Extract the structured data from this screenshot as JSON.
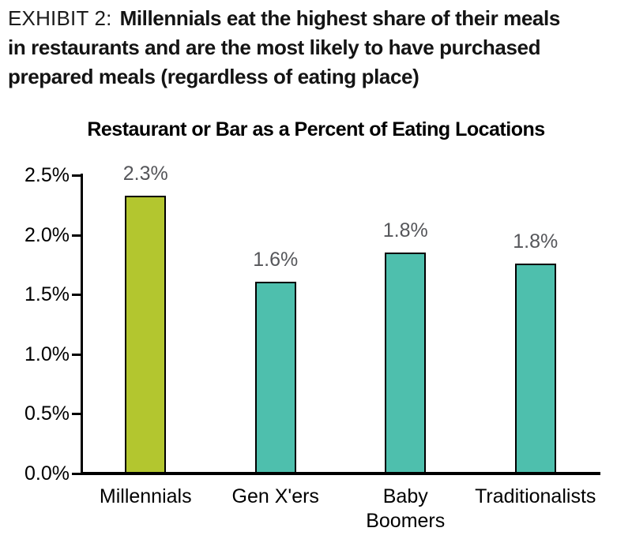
{
  "exhibit": {
    "label": "EXHIBIT 2:",
    "headline_lines": [
      "Millennials eat the highest share of their meals",
      "in restaurants and are the most likely to have purchased",
      "prepared meals (regardless of eating place)"
    ]
  },
  "chart_data": {
    "type": "bar",
    "title": "Restaurant or Bar as a Percent of Eating Locations",
    "categories": [
      "Millennials",
      "Gen X'ers",
      "Baby Boomers",
      "Traditionalists"
    ],
    "category_lines": [
      [
        "Millennials"
      ],
      [
        "Gen X'ers"
      ],
      [
        "Baby",
        "Boomers"
      ],
      [
        "Traditionalists"
      ]
    ],
    "values": [
      2.3,
      1.6,
      1.8,
      1.8
    ],
    "data_labels": [
      "2.3%",
      "1.6%",
      "1.8%",
      "1.8%"
    ],
    "values_precise_estimate": [
      2.33,
      1.61,
      1.85,
      1.76
    ],
    "y_axis": {
      "tick_labels": [
        "0.0%",
        "0.5%",
        "1.0%",
        "1.5%",
        "2.0%",
        "2.5%"
      ],
      "min": 0,
      "max": 2.5,
      "step": 0.5,
      "unit": "%"
    },
    "grid": false,
    "legend": false,
    "highlight_index": 0,
    "colors": {
      "highlight_bar": "#b3c62f",
      "bar": "#4ebfad",
      "bar_border": "#000000",
      "data_label": "#55565a",
      "axis": "#000000",
      "label_text": "#000000"
    }
  }
}
